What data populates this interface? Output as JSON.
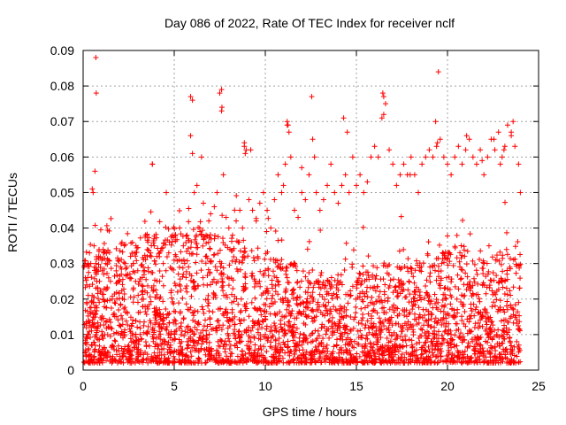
{
  "chart_data": {
    "type": "scatter",
    "title": "Day 086 of 2022, Rate Of TEC Index for receiver nclf",
    "xlabel": "GPS time / hours",
    "ylabel": "ROTI / TECUs",
    "xlim": [
      0,
      25
    ],
    "ylim": [
      0,
      0.09
    ],
    "x_ticks": [
      0,
      5,
      10,
      15,
      20,
      25
    ],
    "x_tick_labels": [
      "0",
      "5",
      "10",
      "15",
      "20",
      "25"
    ],
    "y_ticks": [
      0,
      0.01,
      0.02,
      0.03,
      0.04,
      0.05,
      0.06,
      0.07,
      0.08,
      0.09
    ],
    "y_tick_labels": [
      "0",
      "0.01",
      "0.02",
      "0.03",
      "0.04",
      "0.05",
      "0.06",
      "0.07",
      "0.08",
      "0.09"
    ],
    "grid": true,
    "marker": "+",
    "color": "#ff0000",
    "series": [
      {
        "x": [
          0.05,
          0.12,
          0.2,
          0.28,
          0.35,
          0.42,
          0.5,
          0.55,
          0.6,
          0.65,
          0.7,
          0.72,
          0.75,
          0.8,
          0.85,
          0.9,
          0.95,
          1.05,
          1.15,
          1.25,
          1.4,
          1.5,
          1.6,
          1.7,
          1.85,
          2.0,
          2.1,
          2.3,
          2.45,
          2.6,
          2.75,
          2.9,
          3.0,
          3.1,
          3.3,
          3.5,
          3.7,
          3.8,
          3.9,
          4.05,
          4.2,
          4.4,
          4.55,
          4.7,
          4.9,
          5.1,
          5.3,
          5.5,
          5.7,
          5.9,
          6.0,
          6.1,
          6.25,
          6.4,
          6.5,
          6.6,
          6.75,
          6.9,
          7.0,
          7.2,
          7.35,
          7.5,
          7.6,
          7.7,
          7.85,
          8.0,
          8.2,
          8.4,
          8.6,
          8.75,
          8.85,
          8.95,
          9.1,
          9.3,
          9.5,
          9.7,
          9.9,
          10.1,
          10.3,
          10.5,
          10.7,
          10.9,
          11.0,
          11.1,
          11.2,
          11.3,
          11.4,
          11.6,
          11.8,
          12.0,
          12.2,
          12.4,
          12.6,
          12.7,
          12.8,
          13.0,
          13.2,
          13.4,
          13.6,
          13.8,
          14.0,
          14.2,
          14.4,
          14.6,
          14.8,
          15.0,
          15.2,
          15.4,
          15.6,
          15.8,
          16.0,
          16.2,
          16.4,
          16.5,
          16.6,
          16.8,
          17.0,
          17.2,
          17.4,
          17.6,
          17.8,
          18.0,
          18.2,
          18.4,
          18.6,
          18.8,
          19.0,
          19.2,
          19.4,
          19.5,
          19.6,
          19.8,
          20.0,
          20.2,
          20.4,
          20.6,
          20.8,
          21.0,
          21.2,
          21.4,
          21.6,
          21.8,
          22.0,
          22.2,
          22.4,
          22.6,
          22.8,
          23.0,
          23.1,
          23.3,
          23.5,
          23.7,
          23.9,
          24.0,
          0.3,
          0.9,
          1.6,
          2.2,
          2.8,
          3.4,
          4.1,
          4.8,
          5.4,
          6.2,
          6.8,
          7.4,
          8.1,
          8.7,
          9.4,
          10.0,
          10.6,
          11.5,
          12.1,
          12.9,
          13.5,
          14.1,
          14.7,
          15.3,
          15.9,
          16.7,
          17.3,
          17.9,
          18.5,
          19.1,
          19.7,
          20.3,
          20.9,
          21.5,
          22.1,
          22.7,
          23.4,
          23.8,
          0.7,
          0.72,
          5.9,
          6.0,
          7.6,
          7.62,
          11.2,
          11.25,
          12.55,
          14.3,
          14.5,
          16.45,
          16.5,
          19.35,
          19.45,
          21.05,
          21.9,
          22.55,
          22.9,
          23.15,
          23.5,
          23.6,
          8.85,
          8.9,
          9.2,
          3.8,
          12.0,
          17.95
        ],
        "y": [
          0.029,
          0.026,
          0.024,
          0.03,
          0.033,
          0.03,
          0.051,
          0.05,
          0.035,
          0.056,
          0.03,
          0.027,
          0.025,
          0.023,
          0.032,
          0.025,
          0.022,
          0.028,
          0.033,
          0.03,
          0.026,
          0.025,
          0.02,
          0.016,
          0.02,
          0.025,
          0.027,
          0.03,
          0.027,
          0.032,
          0.03,
          0.035,
          0.028,
          0.025,
          0.029,
          0.038,
          0.033,
          0.058,
          0.035,
          0.032,
          0.033,
          0.03,
          0.028,
          0.033,
          0.038,
          0.032,
          0.04,
          0.035,
          0.038,
          0.066,
          0.061,
          0.05,
          0.052,
          0.04,
          0.06,
          0.047,
          0.038,
          0.042,
          0.044,
          0.046,
          0.05,
          0.078,
          0.073,
          0.055,
          0.043,
          0.04,
          0.038,
          0.042,
          0.045,
          0.04,
          0.063,
          0.062,
          0.048,
          0.045,
          0.042,
          0.047,
          0.05,
          0.045,
          0.04,
          0.048,
          0.055,
          0.05,
          0.052,
          0.058,
          0.069,
          0.067,
          0.06,
          0.045,
          0.043,
          0.05,
          0.048,
          0.055,
          0.065,
          0.06,
          0.05,
          0.045,
          0.048,
          0.052,
          0.058,
          0.05,
          0.047,
          0.052,
          0.055,
          0.05,
          0.06,
          0.052,
          0.055,
          0.05,
          0.053,
          0.06,
          0.063,
          0.06,
          0.071,
          0.077,
          0.075,
          0.062,
          0.058,
          0.052,
          0.055,
          0.058,
          0.055,
          0.06,
          0.055,
          0.05,
          0.058,
          0.06,
          0.062,
          0.06,
          0.063,
          0.084,
          0.065,
          0.06,
          0.058,
          0.055,
          0.06,
          0.063,
          0.058,
          0.062,
          0.065,
          0.06,
          0.058,
          0.062,
          0.055,
          0.06,
          0.065,
          0.062,
          0.067,
          0.06,
          0.062,
          0.069,
          0.066,
          0.063,
          0.058,
          0.05,
          0.006,
          0.005,
          0.007,
          0.004,
          0.008,
          0.005,
          0.006,
          0.007,
          0.008,
          0.006,
          0.009,
          0.008,
          0.007,
          0.01,
          0.009,
          0.01,
          0.011,
          0.012,
          0.01,
          0.011,
          0.009,
          0.012,
          0.011,
          0.013,
          0.012,
          0.014,
          0.013,
          0.012,
          0.015,
          0.016,
          0.018,
          0.015,
          0.013,
          0.012,
          0.011,
          0.01,
          0.009,
          0.008,
          0.088,
          0.078,
          0.077,
          0.076,
          0.079,
          0.074,
          0.07,
          0.069,
          0.077,
          0.071,
          0.067,
          0.078,
          0.072,
          0.07,
          0.064,
          0.066,
          0.059,
          0.065,
          0.058,
          0.063,
          0.067,
          0.07,
          0.064,
          0.061,
          0.062,
          0.058,
          0.057,
          0.055
        ],
        "note_dense_cloud": "Dense continuous band of points between about 0.002 and 0.04 TECUs spanning 0–24 h"
      }
    ]
  }
}
